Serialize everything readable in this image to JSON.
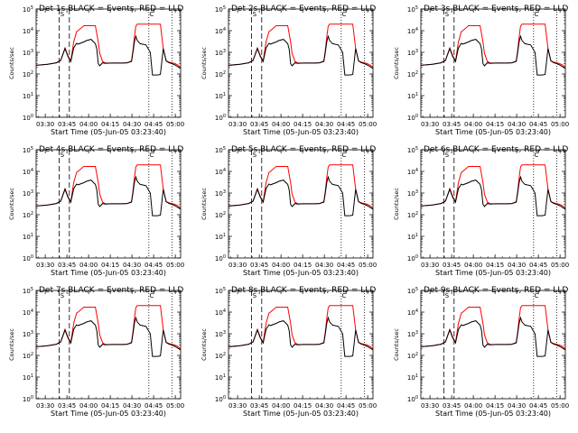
{
  "figure": {
    "colors": {
      "events": "#000000",
      "lld": "#ff0000",
      "axes": "#000000",
      "background": "#ffffff"
    }
  },
  "chart_data": [
    {
      "type": "line",
      "title": "Det 1s BLACK = Events, RED = LLD"
    },
    {
      "type": "line",
      "title": "Det 2s BLACK = Events, RED = LLD"
    },
    {
      "type": "line",
      "title": "Det 3s BLACK = Events, RED = LLD"
    },
    {
      "type": "line",
      "title": "Det 4s BLACK = Events, RED = LLD"
    },
    {
      "type": "line",
      "title": "Det 5s BLACK = Events, RED = LLD"
    },
    {
      "type": "line",
      "title": "Det 6s BLACK = Events, RED = LLD"
    },
    {
      "type": "line",
      "title": "Det 7s BLACK = Events, RED = LLD"
    },
    {
      "type": "line",
      "title": "Det 8s BLACK = Events, RED = LLD"
    },
    {
      "type": "line",
      "title": "Det 9s BLACK = Events, RED = LLD"
    }
  ],
  "shared": {
    "xlabel": "Start Time (05-Jun-05 03:23:40)",
    "ylabel": "Counts/sec",
    "x_ticks": [
      "03:30",
      "03:45",
      "04:00",
      "04:15",
      "04:30",
      "04:45",
      "05:00"
    ],
    "x_tick_minutes": [
      6.33,
      21.33,
      36.33,
      51.33,
      66.33,
      81.33,
      96.33
    ],
    "xlim_minutes": [
      0,
      100
    ],
    "y_scale": "log",
    "ylim": [
      1,
      100000
    ],
    "y_ticks": [
      {
        "exp": "0",
        "value": 1
      },
      {
        "exp": "1",
        "value": 10
      },
      {
        "exp": "2",
        "value": 100
      },
      {
        "exp": "3",
        "value": 1000
      },
      {
        "exp": "4",
        "value": 10000
      },
      {
        "exp": "5",
        "value": 100000
      }
    ],
    "annotation_markers": [
      "S",
      "C",
      "E"
    ],
    "marker_minutes": {
      "S": 18,
      "C": 80
    },
    "dashed_lines_minutes": [
      16,
      23
    ],
    "dotted_lines_minutes": [
      78,
      94
    ],
    "series": [
      {
        "name": "LLD",
        "color": "red",
        "x": [
          0,
          8,
          14,
          17,
          20,
          22,
          24,
          26,
          28,
          29,
          33,
          35,
          38,
          41,
          43,
          44,
          46,
          48,
          52,
          56,
          60,
          63,
          66,
          67,
          68,
          69,
          70,
          80,
          82,
          84,
          86,
          88,
          90,
          92,
          94,
          96,
          98,
          100
        ],
        "y": [
          250,
          280,
          330,
          420,
          1600,
          700,
          400,
          3000,
          9000,
          10000,
          17000,
          17000,
          17000,
          17000,
          3000,
          900,
          380,
          320,
          320,
          320,
          320,
          330,
          400,
          1200,
          5000,
          16000,
          20000,
          20000,
          20000,
          20000,
          20000,
          1500,
          400,
          350,
          330,
          300,
          260,
          200
        ]
      },
      {
        "name": "Events",
        "color": "black",
        "x": [
          0,
          8,
          14,
          17,
          20,
          22,
          24,
          26,
          28,
          29,
          33,
          35,
          38,
          41,
          42,
          43,
          44,
          46,
          48,
          52,
          56,
          60,
          63,
          66,
          67,
          68,
          69,
          70,
          72,
          76,
          79,
          80,
          80.5,
          84,
          86,
          88,
          90,
          92,
          94,
          96,
          98,
          100
        ],
        "y": [
          250,
          280,
          330,
          420,
          1500,
          650,
          380,
          1600,
          2600,
          2400,
          3000,
          3500,
          4000,
          2500,
          1400,
          300,
          240,
          330,
          310,
          320,
          320,
          320,
          330,
          380,
          1000,
          3000,
          5500,
          3500,
          2500,
          2200,
          1000,
          200,
          90,
          90,
          95,
          1500,
          400,
          330,
          300,
          260,
          220,
          180
        ]
      }
    ]
  }
}
